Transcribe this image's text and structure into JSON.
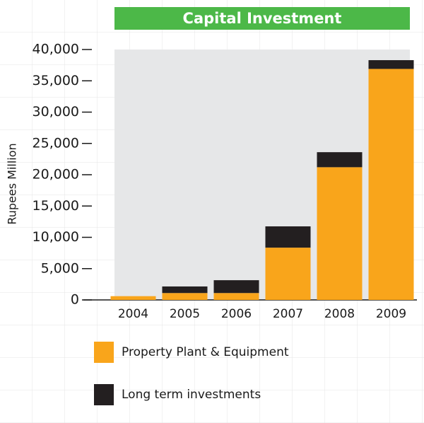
{
  "chart_data": {
    "type": "stacked_bar",
    "title": "Capital Investment",
    "y_label": "Rupees Million",
    "categories": [
      "2004",
      "2005",
      "2006",
      "2007",
      "2008",
      "2009"
    ],
    "series": [
      {
        "name": "Property Plant & Equipment",
        "color": "#f9a51b",
        "values": [
          600,
          1100,
          1100,
          8350,
          21200,
          36900
        ]
      },
      {
        "name": "Long term investments",
        "color": "#231f20",
        "values": [
          0,
          1050,
          2050,
          3400,
          2400,
          1400
        ]
      }
    ],
    "ylim": [
      0,
      40000
    ],
    "yticks": [
      0,
      {
        "value": 5000,
        "label": "5,000"
      },
      {
        "value": 10000,
        "label": "10,000"
      },
      {
        "value": 15000,
        "label": "15,000"
      },
      {
        "value": 20000,
        "label": "20,000"
      },
      {
        "value": 25000,
        "label": "25,000"
      },
      {
        "value": 30000,
        "label": "30,000"
      },
      {
        "value": 35000,
        "label": "35,000"
      },
      {
        "value": 40000,
        "label": "40,000"
      }
    ]
  }
}
